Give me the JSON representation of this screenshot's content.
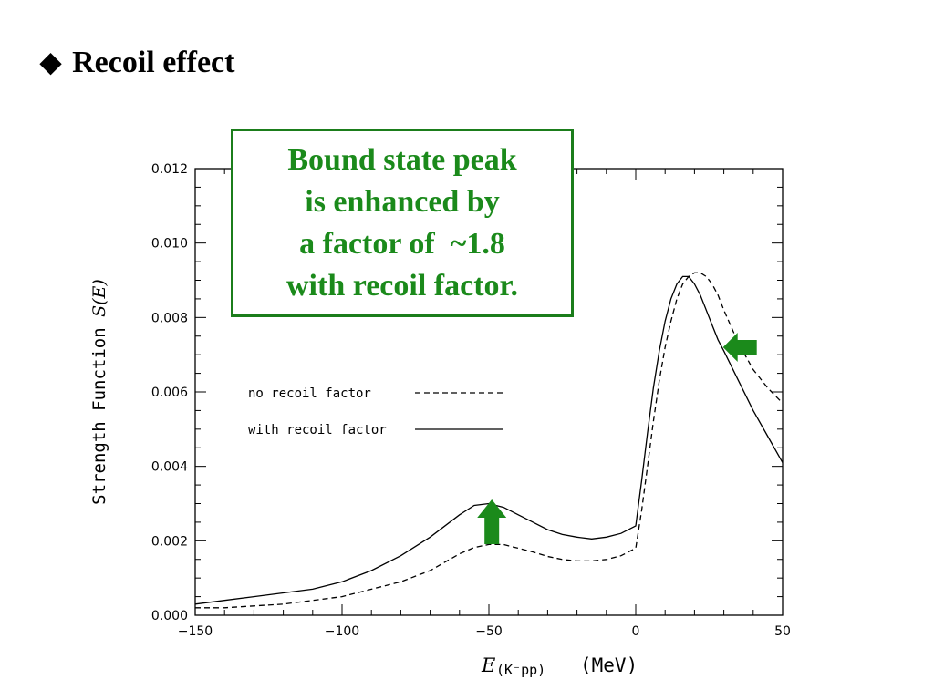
{
  "slide": {
    "bullet": "◆",
    "title": "Recoil effect"
  },
  "callout": {
    "lines": [
      "Bound state peak",
      "is enhanced by",
      "a factor of  ~1.8",
      "with recoil factor."
    ],
    "color": "#1b8a1b"
  },
  "chart_data": {
    "type": "line",
    "xlabel_main": "E",
    "xlabel_sub": "(K⁻pp)",
    "xlabel_unit": "(MeV)",
    "ylabel": "Strength Function",
    "ylabel_symbol": "S(E)",
    "xlim": [
      -150,
      50
    ],
    "ylim": [
      0.0,
      0.012
    ],
    "x_ticks": [
      -150,
      -100,
      -50,
      0,
      50
    ],
    "x_tick_labels": [
      "−150",
      "−100",
      "−50",
      "0",
      "50"
    ],
    "y_ticks": [
      0.0,
      0.002,
      0.004,
      0.006,
      0.008,
      0.01,
      0.012
    ],
    "y_tick_labels": [
      "0.000",
      "0.002",
      "0.004",
      "0.006",
      "0.008",
      "0.010",
      "0.012"
    ],
    "grid": false,
    "series": [
      {
        "name": "no recoil factor",
        "style": "dashed",
        "x": [
          -150,
          -140,
          -130,
          -120,
          -110,
          -100,
          -90,
          -80,
          -70,
          -60,
          -55,
          -50,
          -45,
          -40,
          -35,
          -30,
          -25,
          -20,
          -15,
          -10,
          -5,
          0,
          2,
          4,
          6,
          8,
          10,
          12,
          14,
          16,
          18,
          20,
          22,
          24,
          26,
          28,
          30,
          35,
          40,
          45,
          50
        ],
        "y": [
          0.0002,
          0.0002,
          0.00025,
          0.0003,
          0.0004,
          0.0005,
          0.0007,
          0.0009,
          0.0012,
          0.00165,
          0.00182,
          0.0019,
          0.0019,
          0.0018,
          0.0017,
          0.00158,
          0.0015,
          0.00146,
          0.00146,
          0.0015,
          0.0016,
          0.0018,
          0.0028,
          0.004,
          0.0052,
          0.0063,
          0.0072,
          0.0079,
          0.0085,
          0.0089,
          0.0091,
          0.0092,
          0.0092,
          0.0091,
          0.0089,
          0.0086,
          0.0082,
          0.0073,
          0.0066,
          0.0061,
          0.0057
        ]
      },
      {
        "name": "with recoil factor",
        "style": "solid",
        "x": [
          -150,
          -140,
          -130,
          -120,
          -110,
          -100,
          -90,
          -80,
          -70,
          -60,
          -55,
          -50,
          -45,
          -40,
          -35,
          -30,
          -25,
          -20,
          -15,
          -10,
          -5,
          0,
          2,
          4,
          6,
          8,
          10,
          12,
          14,
          16,
          18,
          20,
          22,
          24,
          26,
          28,
          30,
          35,
          40,
          45,
          50
        ],
        "y": [
          0.0003,
          0.0004,
          0.0005,
          0.0006,
          0.0007,
          0.0009,
          0.0012,
          0.0016,
          0.0021,
          0.0027,
          0.00295,
          0.003,
          0.0029,
          0.0027,
          0.0025,
          0.0023,
          0.00217,
          0.0021,
          0.00205,
          0.0021,
          0.0022,
          0.0024,
          0.0036,
          0.0049,
          0.0061,
          0.0071,
          0.0079,
          0.0085,
          0.0089,
          0.0091,
          0.0091,
          0.0089,
          0.0086,
          0.0082,
          0.0078,
          0.0074,
          0.0071,
          0.0063,
          0.0055,
          0.0048,
          0.0041
        ]
      }
    ],
    "arrows": [
      {
        "direction": "up",
        "x": -49,
        "y": 0.00245,
        "color": "#1b8a1b"
      },
      {
        "direction": "left",
        "x": 35,
        "y": 0.0072,
        "color": "#1b8a1b"
      }
    ]
  }
}
